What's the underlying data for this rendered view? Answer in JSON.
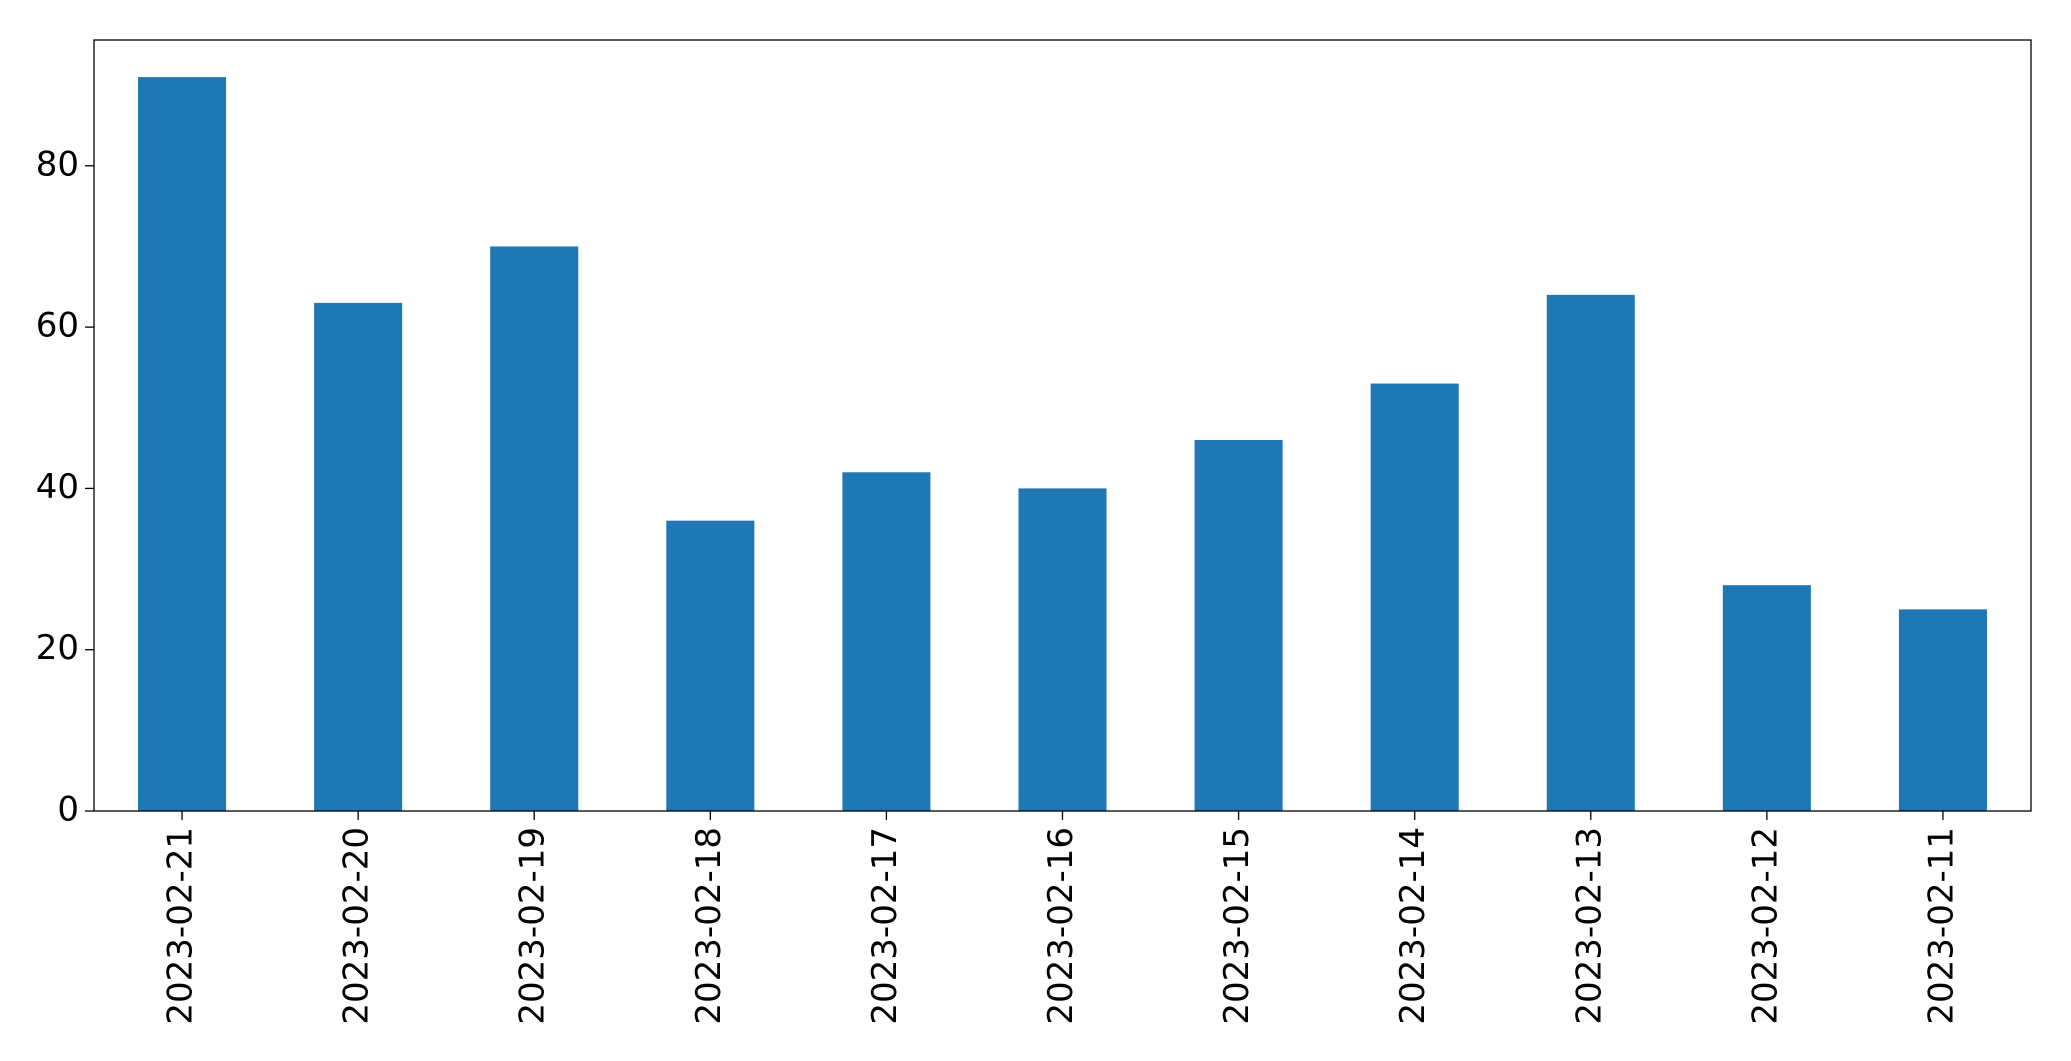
{
  "chart_data": {
    "type": "bar",
    "categories": [
      "2023-02-21",
      "2023-02-20",
      "2023-02-19",
      "2023-02-18",
      "2023-02-17",
      "2023-02-16",
      "2023-02-15",
      "2023-02-14",
      "2023-02-13",
      "2023-02-12",
      "2023-02-11"
    ],
    "values": [
      91,
      63,
      70,
      36,
      42,
      40,
      46,
      53,
      64,
      28,
      25
    ],
    "color": "#1f77b4",
    "ylim": [
      0,
      95.6
    ],
    "yticks": [
      0,
      20,
      40,
      60,
      80
    ],
    "grid": false
  }
}
